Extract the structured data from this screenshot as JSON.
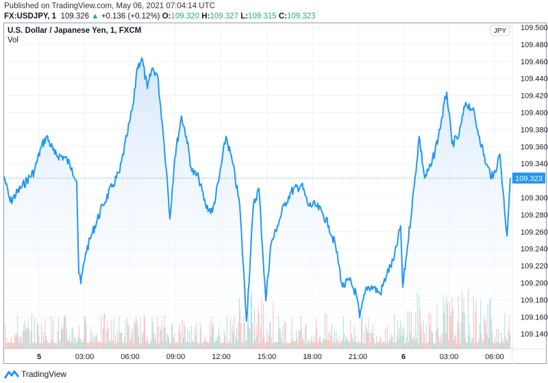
{
  "header": {
    "published": "Published on TradingView.com, May 06, 2021 07:04:14 UTC",
    "symbol": "FX:USDJPY, 1",
    "last": "109.326",
    "change": "+0.136 (+0.12%)",
    "open_label": "O:",
    "open": "109.320",
    "high_label": "H:",
    "high": "109.327",
    "low_label": "L:",
    "low": "109.315",
    "close_label": "C:",
    "close": "109.323",
    "up_arrow_icon": "triangle-up-icon"
  },
  "legend": {
    "title": "U.S. Dollar / Japanese Yen, 1, FXCM",
    "vol": "Vol"
  },
  "currency_badge": "JPY",
  "footer": {
    "brand": "TradingView",
    "logo_icon": "tradingview-logo-icon"
  },
  "colors": {
    "line": "#2196f3",
    "fill": "#e3f0fc",
    "up_volume": "#26a69a",
    "down_volume": "#ef5350",
    "price_label": "#2196f3",
    "change_up": "#26a69a"
  },
  "chart_data": {
    "type": "area",
    "interval": "1 minute",
    "grid": true,
    "y_axis": {
      "side": "right",
      "range": [
        109.13,
        109.5
      ],
      "ticks": [
        "109.500",
        "109.480",
        "109.460",
        "109.440",
        "109.420",
        "109.400",
        "109.380",
        "109.360",
        "109.340",
        "109.300",
        "109.280",
        "109.260",
        "109.240",
        "109.220",
        "109.200",
        "109.180",
        "109.160",
        "109.140"
      ]
    },
    "x_axis": {
      "ticks": [
        {
          "t": "2021-05-05 00:00",
          "label": "5"
        },
        {
          "t": "2021-05-05 03:00",
          "label": "03:00"
        },
        {
          "t": "2021-05-05 06:00",
          "label": "06:00"
        },
        {
          "t": "2021-05-05 09:00",
          "label": "09:00"
        },
        {
          "t": "2021-05-05 12:00",
          "label": "12:00"
        },
        {
          "t": "2021-05-05 15:00",
          "label": "15:00"
        },
        {
          "t": "2021-05-05 18:00",
          "label": "18:00"
        },
        {
          "t": "2021-05-05 21:00",
          "label": "21:00"
        },
        {
          "t": "2021-05-06 00:00",
          "label": "6"
        },
        {
          "t": "2021-05-06 03:00",
          "label": "03:00"
        },
        {
          "t": "2021-05-06 06:00",
          "label": "06:00"
        }
      ]
    },
    "current_price": "109.323",
    "series": [
      {
        "points": [
          [
            "2021-05-04 21:42",
            109.325
          ],
          [
            "2021-05-04 22:06",
            109.295
          ],
          [
            "2021-05-04 22:47",
            109.311
          ],
          [
            "2021-05-04 23:41",
            109.331
          ],
          [
            "2021-05-05 00:08",
            109.359
          ],
          [
            "2021-05-05 00:30",
            109.372
          ],
          [
            "2021-05-05 01:02",
            109.351
          ],
          [
            "2021-05-05 01:43",
            109.347
          ],
          [
            "2021-05-05 02:10",
            109.335
          ],
          [
            "2021-05-05 02:29",
            109.319
          ],
          [
            "2021-05-05 02:37",
            109.211
          ],
          [
            "2021-05-05 02:45",
            109.199
          ],
          [
            "2021-05-05 03:04",
            109.235
          ],
          [
            "2021-05-05 03:31",
            109.259
          ],
          [
            "2021-05-05 04:12",
            109.291
          ],
          [
            "2021-05-05 04:52",
            109.315
          ],
          [
            "2021-05-05 05:19",
            109.331
          ],
          [
            "2021-05-05 05:47",
            109.372
          ],
          [
            "2021-05-05 06:00",
            109.392
          ],
          [
            "2021-05-05 06:14",
            109.412
          ],
          [
            "2021-05-05 06:27",
            109.452
          ],
          [
            "2021-05-05 06:46",
            109.464
          ],
          [
            "2021-05-05 07:08",
            109.428
          ],
          [
            "2021-05-05 07:27",
            109.452
          ],
          [
            "2021-05-05 07:48",
            109.444
          ],
          [
            "2021-05-05 08:07",
            109.388
          ],
          [
            "2021-05-05 08:24",
            109.331
          ],
          [
            "2021-05-05 08:37",
            109.275
          ],
          [
            "2021-05-05 08:56",
            109.347
          ],
          [
            "2021-05-05 09:23",
            109.396
          ],
          [
            "2021-05-05 09:42",
            109.372
          ],
          [
            "2021-05-05 10:04",
            109.331
          ],
          [
            "2021-05-05 10:31",
            109.323
          ],
          [
            "2021-05-05 10:58",
            109.291
          ],
          [
            "2021-05-05 11:25",
            109.283
          ],
          [
            "2021-05-05 11:52",
            109.323
          ],
          [
            "2021-05-05 12:19",
            109.372
          ],
          [
            "2021-05-05 12:46",
            109.339
          ],
          [
            "2021-05-05 13:13",
            109.291
          ],
          [
            "2021-05-05 13:40",
            109.155
          ],
          [
            "2021-05-05 14:07",
            109.291
          ],
          [
            "2021-05-05 14:29",
            109.311
          ],
          [
            "2021-05-05 14:56",
            109.179
          ],
          [
            "2021-05-05 15:15",
            109.243
          ],
          [
            "2021-05-05 15:42",
            109.267
          ],
          [
            "2021-05-05 16:09",
            109.291
          ],
          [
            "2021-05-05 16:36",
            109.307
          ],
          [
            "2021-05-05 17:17",
            109.315
          ],
          [
            "2021-05-05 17:44",
            109.291
          ],
          [
            "2021-05-05 18:11",
            109.291
          ],
          [
            "2021-05-05 18:38",
            109.283
          ],
          [
            "2021-05-05 19:05",
            109.267
          ],
          [
            "2021-05-05 19:32",
            109.243
          ],
          [
            "2021-05-05 19:59",
            109.195
          ],
          [
            "2021-05-05 20:26",
            109.203
          ],
          [
            "2021-05-05 20:53",
            109.187
          ],
          [
            "2021-05-05 21:07",
            109.159
          ],
          [
            "2021-05-05 21:34",
            109.195
          ],
          [
            "2021-05-05 22:01",
            109.195
          ],
          [
            "2021-05-05 22:28",
            109.187
          ],
          [
            "2021-05-05 22:55",
            109.211
          ],
          [
            "2021-05-05 23:22",
            109.227
          ],
          [
            "2021-05-05 23:49",
            109.267
          ],
          [
            "2021-05-05 23:57",
            109.195
          ],
          [
            "2021-05-06 00:16",
            109.243
          ],
          [
            "2021-05-06 00:43",
            109.315
          ],
          [
            "2021-05-06 01:02",
            109.372
          ],
          [
            "2021-05-06 01:24",
            109.323
          ],
          [
            "2021-05-06 01:51",
            109.339
          ],
          [
            "2021-05-06 02:18",
            109.372
          ],
          [
            "2021-05-06 02:51",
            109.424
          ],
          [
            "2021-05-06 03:12",
            109.363
          ],
          [
            "2021-05-06 03:39",
            109.372
          ],
          [
            "2021-05-06 04:06",
            109.412
          ],
          [
            "2021-05-06 04:33",
            109.404
          ],
          [
            "2021-05-06 05:00",
            109.372
          ],
          [
            "2021-05-06 05:27",
            109.339
          ],
          [
            "2021-05-06 05:54",
            109.323
          ],
          [
            "2021-05-06 06:21",
            109.351
          ],
          [
            "2021-05-06 06:49",
            109.255
          ],
          [
            "2021-05-06 07:02",
            109.323
          ]
        ]
      }
    ]
  }
}
